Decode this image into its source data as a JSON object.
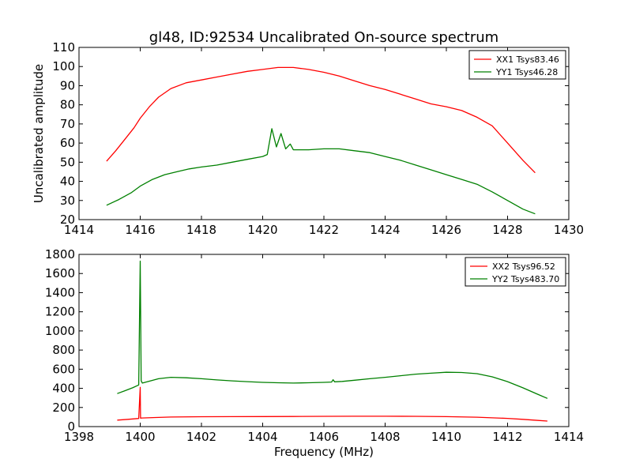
{
  "figure": {
    "title": "gl48, ID:92534 Uncalibrated On-source spectrum"
  },
  "chart_data": [
    {
      "type": "line",
      "title": "gl48, ID:92534 Uncalibrated On-source spectrum",
      "xlabel": "",
      "ylabel": "Uncalibrated amplitude",
      "xlim": [
        1414,
        1430
      ],
      "ylim": [
        20,
        110
      ],
      "xticks": [
        1414,
        1416,
        1418,
        1420,
        1422,
        1424,
        1426,
        1428,
        1430
      ],
      "yticks": [
        20,
        30,
        40,
        50,
        60,
        70,
        80,
        90,
        100,
        110
      ],
      "legend_position": "top-right",
      "grid": false,
      "series": [
        {
          "name": "XX1 Tsys83.46",
          "color": "#ff0000",
          "x": [
            1414.9,
            1415.2,
            1415.5,
            1415.8,
            1416.0,
            1416.3,
            1416.6,
            1417.0,
            1417.5,
            1418.0,
            1418.5,
            1419.0,
            1419.5,
            1420.0,
            1420.5,
            1421.0,
            1421.5,
            1422.0,
            1422.5,
            1423.0,
            1423.5,
            1424.0,
            1424.5,
            1425.0,
            1425.5,
            1426.0,
            1426.5,
            1427.0,
            1427.5,
            1428.0,
            1428.5,
            1428.9
          ],
          "y": [
            50.5,
            56,
            62,
            68,
            73,
            79,
            84,
            88.5,
            91.5,
            93,
            94.5,
            96,
            97.5,
            98.5,
            99.5,
            99.5,
            98.5,
            97,
            95,
            92.5,
            90,
            88,
            85.5,
            83,
            80.5,
            79,
            77,
            73.5,
            69,
            60,
            51,
            44.5
          ]
        },
        {
          "name": "YY1 Tsys46.28",
          "color": "#008000",
          "x": [
            1414.9,
            1415.3,
            1415.7,
            1416.0,
            1416.4,
            1416.8,
            1417.2,
            1417.6,
            1418.0,
            1418.5,
            1419.0,
            1419.5,
            1420.0,
            1420.15,
            1420.3,
            1420.45,
            1420.6,
            1420.75,
            1420.9,
            1421.0,
            1421.5,
            1422.0,
            1422.5,
            1423.0,
            1423.5,
            1424.0,
            1424.5,
            1425.0,
            1425.5,
            1426.0,
            1426.5,
            1427.0,
            1427.5,
            1428.0,
            1428.5,
            1428.9
          ],
          "y": [
            27.5,
            30.5,
            34,
            37.5,
            41,
            43.5,
            45,
            46.5,
            47.5,
            48.5,
            50,
            51.5,
            53,
            54,
            67.5,
            58,
            65,
            57,
            59.5,
            56.5,
            56.5,
            57,
            57,
            56,
            55,
            53,
            51,
            48.5,
            46,
            43.5,
            41,
            38.5,
            34.5,
            30,
            25.5,
            23
          ]
        }
      ]
    },
    {
      "type": "line",
      "title": "",
      "xlabel": "Frequency (MHz)",
      "ylabel": "",
      "xlim": [
        1398,
        1414
      ],
      "ylim": [
        0,
        1800
      ],
      "xticks": [
        1398,
        1400,
        1402,
        1404,
        1406,
        1408,
        1410,
        1412,
        1414
      ],
      "yticks": [
        0,
        200,
        400,
        600,
        800,
        1000,
        1200,
        1400,
        1600,
        1800
      ],
      "legend_position": "top-right",
      "grid": false,
      "series": [
        {
          "name": "XX2 Tsys96.52",
          "color": "#ff0000",
          "x": [
            1399.25,
            1399.6,
            1399.95,
            1400.0,
            1400.01,
            1400.05,
            1400.5,
            1401.0,
            1402.0,
            1403.0,
            1404.0,
            1405.0,
            1406.0,
            1407.0,
            1408.0,
            1409.0,
            1410.0,
            1411.0,
            1412.0,
            1412.5,
            1413.0,
            1413.3
          ],
          "y": [
            68,
            76,
            85,
            410,
            88,
            90,
            95,
            100,
            103,
            104,
            105,
            106,
            107,
            108,
            108,
            107,
            104,
            98,
            86,
            76,
            64,
            58
          ]
        },
        {
          "name": "YY2 Tsys483.70",
          "color": "#008000",
          "x": [
            1399.25,
            1399.5,
            1399.75,
            1399.95,
            1400.0,
            1400.03,
            1400.07,
            1400.3,
            1400.6,
            1401.0,
            1401.5,
            1402.0,
            1402.5,
            1403.0,
            1403.5,
            1404.0,
            1404.5,
            1405.0,
            1405.5,
            1406.0,
            1406.25,
            1406.3,
            1406.35,
            1406.6,
            1407.0,
            1407.5,
            1408.0,
            1408.5,
            1409.0,
            1409.5,
            1410.0,
            1410.5,
            1411.0,
            1411.5,
            1412.0,
            1412.5,
            1413.0,
            1413.3
          ],
          "y": [
            345,
            375,
            405,
            435,
            1730,
            480,
            455,
            475,
            500,
            515,
            510,
            500,
            488,
            478,
            470,
            462,
            458,
            455,
            458,
            462,
            466,
            490,
            468,
            472,
            485,
            500,
            515,
            532,
            548,
            558,
            568,
            566,
            553,
            520,
            470,
            405,
            335,
            295
          ]
        }
      ]
    }
  ]
}
